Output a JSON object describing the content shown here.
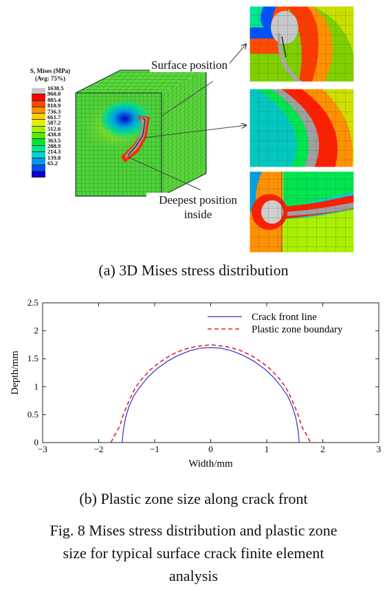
{
  "figure_a": {
    "legend_title_line1": "S, Mises (MPa)",
    "legend_title_line2": "(Avg: 75%)",
    "legend_values": [
      "1638.5",
      "960.0",
      "885.4",
      "810.9",
      "736.3",
      "661.7",
      "587.2",
      "512.6",
      "438.0",
      "363.5",
      "288.9",
      "214.3",
      "139.8",
      "65.2"
    ],
    "legend_colors": [
      "#c8c8c8",
      "#ff0000",
      "#ff4a00",
      "#ff9100",
      "#ffcd00",
      "#e3f000",
      "#a6f000",
      "#5ce600",
      "#00e632",
      "#00e690",
      "#00d2d2",
      "#0098e8",
      "#0050ff",
      "#0000d8"
    ],
    "callout_surface": "Surface position",
    "callout_deepest_line1": "Deepest position",
    "callout_deepest_line2": "inside",
    "caption": "(a) 3D Mises stress distribution"
  },
  "figure_b": {
    "caption": "(b) Plastic zone size along crack front"
  },
  "figure_caption_lines": [
    "Fig. 8 Mises stress distribution and plastic zone",
    "size for typical surface crack finite element",
    "analysis"
  ],
  "chart_data": {
    "type": "line",
    "title": "",
    "xlabel": "Width/mm",
    "ylabel": "Depth/mm",
    "xlim": [
      -3,
      3
    ],
    "ylim": [
      0,
      2.5
    ],
    "x_ticks": [
      -3,
      -2,
      -1,
      0,
      1,
      2,
      3
    ],
    "x_tick_labels": [
      "−3",
      "−2",
      "−1",
      "0",
      "1",
      "2",
      "3"
    ],
    "y_ticks": [
      0,
      0.5,
      1,
      1.5,
      2,
      2.5
    ],
    "y_tick_labels": [
      "0",
      "0.5",
      "1",
      "1.5",
      "2",
      "2.5"
    ],
    "grid": false,
    "legend_position": "top-right",
    "series": [
      {
        "name": "Crack front line",
        "color": "#2b2bd6",
        "style": "solid",
        "x": [
          -1.58,
          -1.56,
          -1.52,
          -1.46,
          -1.37,
          -1.26,
          -1.12,
          -0.96,
          -0.78,
          -0.58,
          -0.38,
          -0.18,
          0,
          0.18,
          0.38,
          0.58,
          0.78,
          0.96,
          1.12,
          1.26,
          1.37,
          1.46,
          1.52,
          1.56,
          1.58
        ],
        "y": [
          0,
          0.22,
          0.44,
          0.64,
          0.84,
          1.0,
          1.17,
          1.32,
          1.45,
          1.56,
          1.64,
          1.69,
          1.7,
          1.69,
          1.64,
          1.56,
          1.45,
          1.32,
          1.17,
          1.0,
          0.84,
          0.64,
          0.44,
          0.22,
          0
        ]
      },
      {
        "name": "Plastic zone boundary",
        "color": "#e02020",
        "style": "dashed",
        "x": [
          -1.78,
          -1.72,
          -1.62,
          -1.57,
          -1.5,
          -1.42,
          -1.34,
          -1.22,
          -1.08,
          -0.92,
          -0.72,
          -0.5,
          -0.26,
          0,
          0.26,
          0.5,
          0.72,
          0.92,
          1.08,
          1.22,
          1.34,
          1.42,
          1.5,
          1.57,
          1.62,
          1.72,
          1.78
        ],
        "y": [
          0,
          0.12,
          0.3,
          0.47,
          0.65,
          0.83,
          0.99,
          1.15,
          1.3,
          1.43,
          1.56,
          1.66,
          1.72,
          1.75,
          1.72,
          1.66,
          1.56,
          1.43,
          1.3,
          1.15,
          0.99,
          0.83,
          0.65,
          0.47,
          0.3,
          0.12,
          0
        ]
      }
    ]
  }
}
